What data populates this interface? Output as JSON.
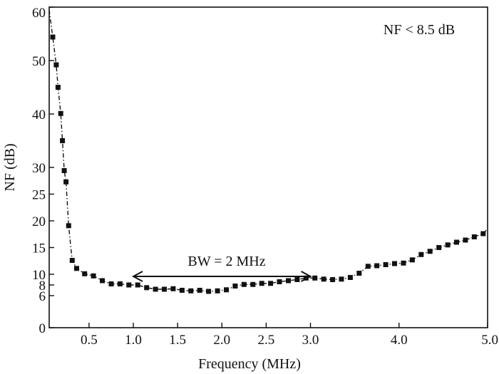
{
  "chart_data": {
    "type": "scatter",
    "xlabel": "Frequency (MHz)",
    "ylabel": "NF (dB)",
    "xlim": [
      0.05,
      5.0
    ],
    "ylim": [
      0,
      60
    ],
    "x_ticks": [
      0.5,
      1.0,
      1.5,
      2.0,
      2.5,
      3.0,
      4.0,
      5.0
    ],
    "x_tick_labels": [
      "0.5",
      "1.0",
      "1.5",
      "2.0",
      "2.5",
      "3.0",
      "4.0",
      "5.0"
    ],
    "y_ticks": [
      0,
      6,
      8,
      10,
      15,
      20,
      25,
      30,
      40,
      50,
      60
    ],
    "y_tick_labels": [
      "0",
      "6",
      "8",
      "10",
      "15",
      "20",
      "25",
      "30",
      "40",
      "50",
      "60"
    ],
    "grid": false,
    "legend": "none",
    "marker": "square",
    "line_style": "dash-dot",
    "color": "#111111",
    "series": [
      {
        "x": [
          0.09,
          0.13,
          0.15,
          0.18,
          0.2,
          0.22,
          0.24,
          0.27,
          0.31,
          0.36,
          0.45,
          0.55,
          0.65,
          0.75,
          0.85,
          0.95,
          1.05,
          1.15,
          1.25,
          1.35,
          1.45,
          1.55,
          1.65,
          1.75,
          1.85,
          1.95,
          2.05,
          2.15,
          2.25,
          2.35,
          2.45,
          2.55,
          2.65,
          2.75,
          2.85,
          2.95,
          3.05,
          3.15,
          3.25,
          3.35,
          3.45,
          3.55,
          3.65,
          3.75,
          3.85,
          3.95,
          4.05,
          4.15,
          4.25,
          4.35,
          4.45,
          4.55,
          4.65,
          4.75,
          4.85,
          4.95
        ],
        "y": [
          54.4,
          49.2,
          45.0,
          40.1,
          35.0,
          29.4,
          27.3,
          19.1,
          12.6,
          11.1,
          10.1,
          9.7,
          8.8,
          8.2,
          8.2,
          8.0,
          8.0,
          7.5,
          7.2,
          7.2,
          7.3,
          7.0,
          6.9,
          7.0,
          6.8,
          6.9,
          7.1,
          7.8,
          8.1,
          8.1,
          8.3,
          8.3,
          8.6,
          8.8,
          9.0,
          9.3,
          9.3,
          9.1,
          9.0,
          9.1,
          9.4,
          10.2,
          11.5,
          11.6,
          11.8,
          12.0,
          12.1,
          12.7,
          13.7,
          14.3,
          15.0,
          15.5,
          16.0,
          16.4,
          17.0,
          17.6
        ]
      }
    ],
    "annotations": {
      "nf_limit": "NF < 8.5 dB",
      "bandwidth": "BW = 2 MHz",
      "bw_arrow_x": [
        1.0,
        3.0
      ],
      "bw_arrow_y": 9.6
    }
  }
}
